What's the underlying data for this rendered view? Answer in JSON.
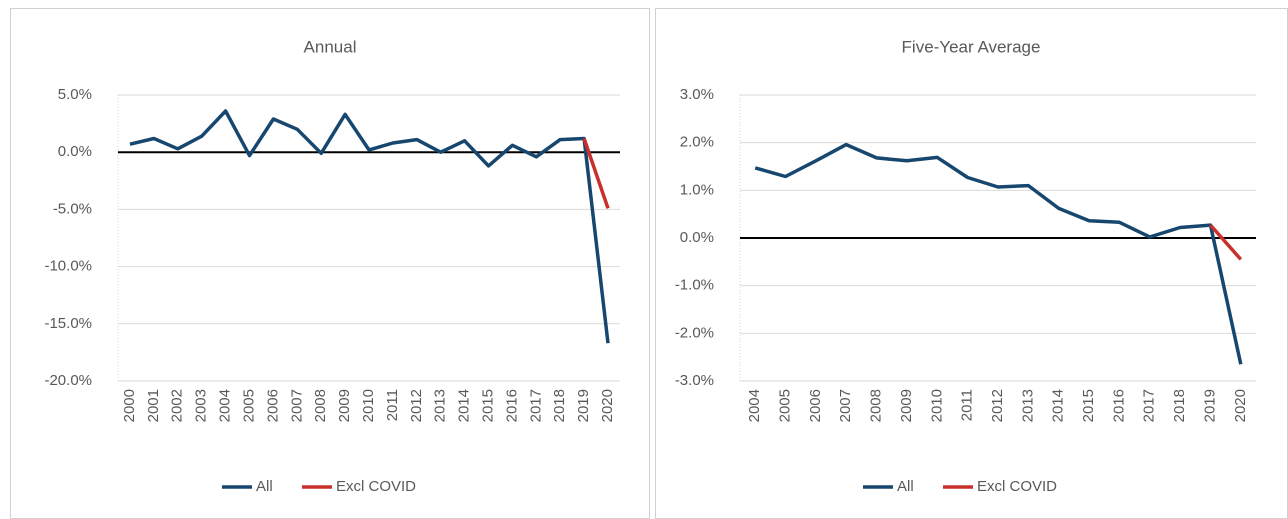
{
  "chart_data": [
    {
      "type": "line",
      "title": "Annual",
      "categories": [
        "2000",
        "2001",
        "2002",
        "2003",
        "2004",
        "2005",
        "2006",
        "2007",
        "2008",
        "2009",
        "2010",
        "2011",
        "2012",
        "2013",
        "2014",
        "2015",
        "2016",
        "2017",
        "2018",
        "2019",
        "2020"
      ],
      "series": [
        {
          "name": "All",
          "color": "#17476e",
          "values": [
            0.7,
            1.2,
            0.3,
            1.4,
            3.6,
            -0.3,
            2.9,
            2.0,
            -0.1,
            3.3,
            0.2,
            0.8,
            1.1,
            0.0,
            1.0,
            -1.2,
            0.6,
            -0.4,
            1.1,
            1.2,
            -16.7
          ]
        },
        {
          "name": "Excl COVID",
          "color": "#c9302c",
          "values": [
            null,
            null,
            null,
            null,
            null,
            null,
            null,
            null,
            null,
            null,
            null,
            null,
            null,
            null,
            null,
            null,
            null,
            null,
            null,
            1.2,
            -4.9
          ]
        }
      ],
      "ylim": [
        -20,
        5
      ],
      "yticks": [
        {
          "value": -20,
          "label": "-20.0%"
        },
        {
          "value": -15,
          "label": "-15.0%"
        },
        {
          "value": -10,
          "label": "-10.0%"
        },
        {
          "value": -5,
          "label": "-5.0%"
        },
        {
          "value": 0,
          "label": "0.0%"
        },
        {
          "value": 5,
          "label": "5.0%"
        }
      ],
      "grid": true,
      "legend": "bottom"
    },
    {
      "type": "line",
      "title": "Five-Year Average",
      "categories": [
        "2004",
        "2005",
        "2006",
        "2007",
        "2008",
        "2009",
        "2010",
        "2011",
        "2012",
        "2013",
        "2014",
        "2015",
        "2016",
        "2017",
        "2018",
        "2019",
        "2020"
      ],
      "series": [
        {
          "name": "All",
          "color": "#17476e",
          "values": [
            1.47,
            1.29,
            1.62,
            1.96,
            1.68,
            1.62,
            1.69,
            1.27,
            1.07,
            1.1,
            0.62,
            0.36,
            0.33,
            0.02,
            0.22,
            0.27,
            -2.65
          ]
        },
        {
          "name": "Excl COVID",
          "color": "#c9302c",
          "values": [
            null,
            null,
            null,
            null,
            null,
            null,
            null,
            null,
            null,
            null,
            null,
            null,
            null,
            null,
            null,
            0.27,
            -0.45
          ]
        }
      ],
      "ylim": [
        -3,
        3
      ],
      "yticks": [
        {
          "value": -3,
          "label": "-3.0%"
        },
        {
          "value": -2,
          "label": "-2.0%"
        },
        {
          "value": -1,
          "label": "-1.0%"
        },
        {
          "value": 0,
          "label": "0.0%"
        },
        {
          "value": 1,
          "label": "1.0%"
        },
        {
          "value": 2,
          "label": "2.0%"
        },
        {
          "value": 3,
          "label": "3.0%"
        }
      ],
      "grid": true,
      "legend": "bottom"
    }
  ]
}
